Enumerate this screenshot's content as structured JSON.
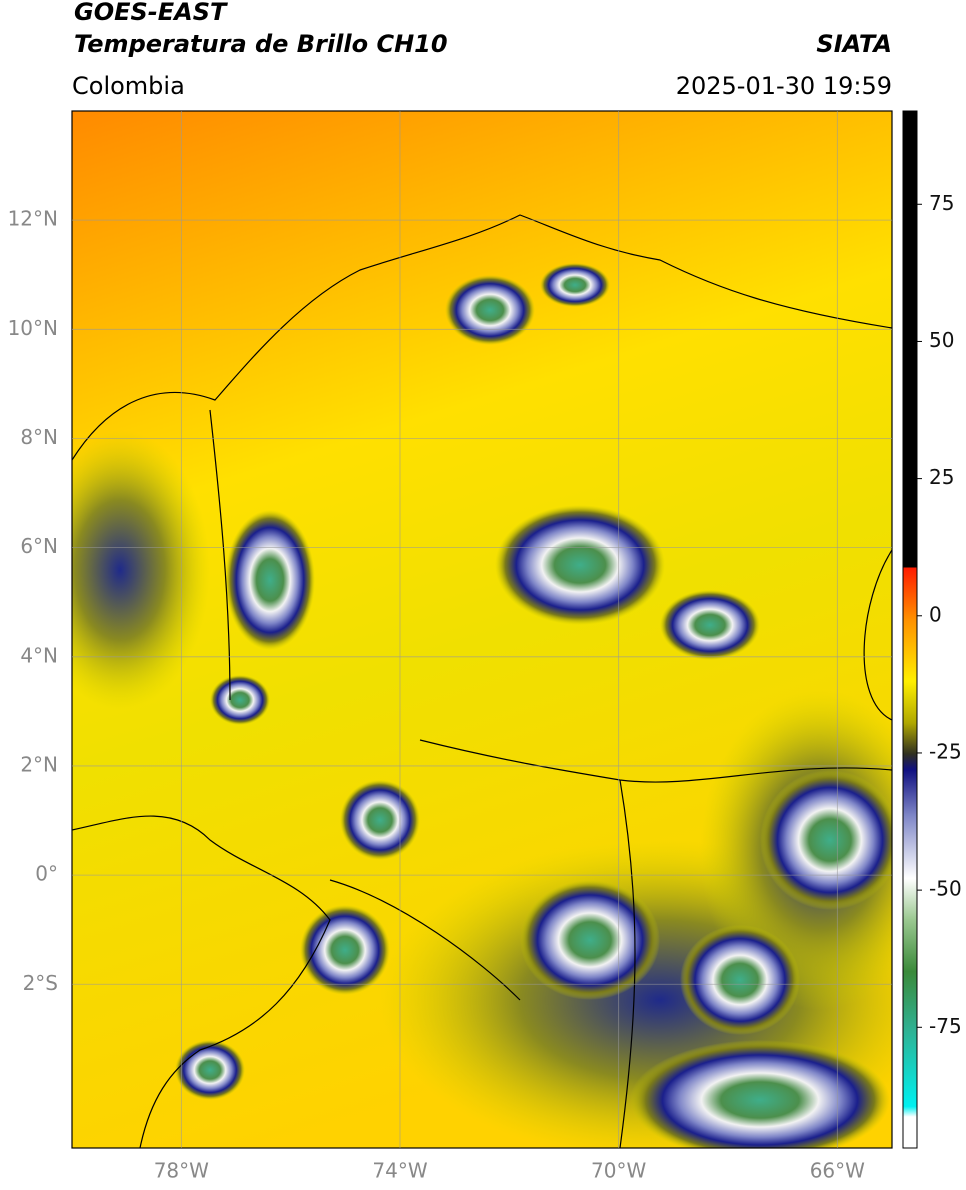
{
  "chart_data": {
    "type": "map",
    "title": "GOES-EAST",
    "subtitle": "Temperatura de Brillo CH10",
    "source": "SIATA",
    "region": "Colombia",
    "timestamp": "2025-01-30 19:59",
    "xlim": [
      -80,
      -65
    ],
    "ylim": [
      -5,
      14
    ],
    "xticks": [
      {
        "value": -78,
        "label": "78°W"
      },
      {
        "value": -74,
        "label": "74°W"
      },
      {
        "value": -70,
        "label": "70°W"
      },
      {
        "value": -66,
        "label": "66°W"
      }
    ],
    "yticks": [
      {
        "value": 12,
        "label": "12°N"
      },
      {
        "value": 10,
        "label": "10°N"
      },
      {
        "value": 8,
        "label": "8°N"
      },
      {
        "value": 6,
        "label": "6°N"
      },
      {
        "value": 4,
        "label": "4°N"
      },
      {
        "value": 2,
        "label": "2°N"
      },
      {
        "value": 0,
        "label": "0°"
      },
      {
        "value": -2,
        "label": "2°S"
      }
    ],
    "grid": true,
    "colorbar": {
      "lim": [
        -97,
        92
      ],
      "ticks": [
        75,
        50,
        25,
        0,
        -25,
        -50,
        -75
      ]
    }
  }
}
